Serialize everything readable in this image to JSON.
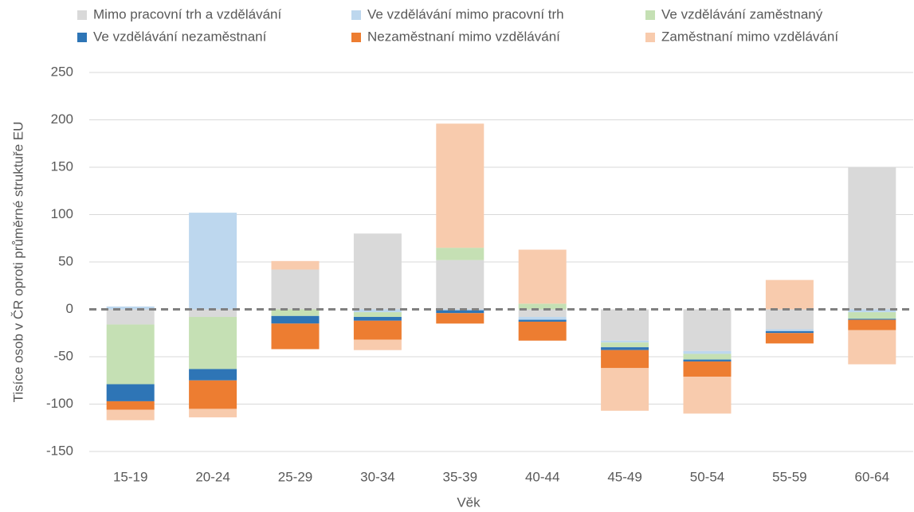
{
  "chart_data": {
    "type": "stacked_bar",
    "x_label": "Věk",
    "y_label": "Tisíce osob v ČR oproti průměrné struktuře EU",
    "categories": [
      "15-19",
      "20-24",
      "25-29",
      "30-34",
      "35-39",
      "40-44",
      "45-49",
      "50-54",
      "55-59",
      "60-64"
    ],
    "series": [
      {
        "name": "Mimo pracovní trh a vzdělávání",
        "color": "#d9d9d9",
        "values": [
          -16,
          -8,
          42,
          80,
          52,
          -8,
          -33,
          -44,
          -21,
          150
        ]
      },
      {
        "name": "Ve vzdělávání mimo pracovní trh",
        "color": "#bdd7ee",
        "values": [
          3,
          102,
          0,
          -3,
          -1,
          -3,
          -2,
          -3,
          -2,
          -3
        ]
      },
      {
        "name": "Ve vzdělávání zaměstnaný",
        "color": "#c5e0b4",
        "values": [
          -63,
          -55,
          -7,
          -5,
          13,
          6,
          -5,
          -6,
          0,
          -7
        ]
      },
      {
        "name": "Ve vzdělávání nezaměstnaní",
        "color": "#2e75b6",
        "values": [
          -18,
          -12,
          -8,
          -4,
          -3,
          -2,
          -3,
          -2,
          -2,
          -1
        ]
      },
      {
        "name": "Nezaměstnaní mimo vzdělávání",
        "color": "#ed7d31",
        "values": [
          -9,
          -30,
          -27,
          -20,
          -11,
          -20,
          -19,
          -16,
          -11,
          -11
        ]
      },
      {
        "name": "Zaměstnaní mimo vzdělávání",
        "color": "#f8cbad",
        "values": [
          -11,
          -9,
          9,
          -11,
          131,
          57,
          -45,
          -39,
          31,
          -36
        ]
      }
    ],
    "ylim": [
      -150,
      250
    ],
    "yticks": [
      -150,
      -100,
      -50,
      0,
      50,
      100,
      150,
      200,
      250
    ],
    "grid": true,
    "legend": "top"
  }
}
